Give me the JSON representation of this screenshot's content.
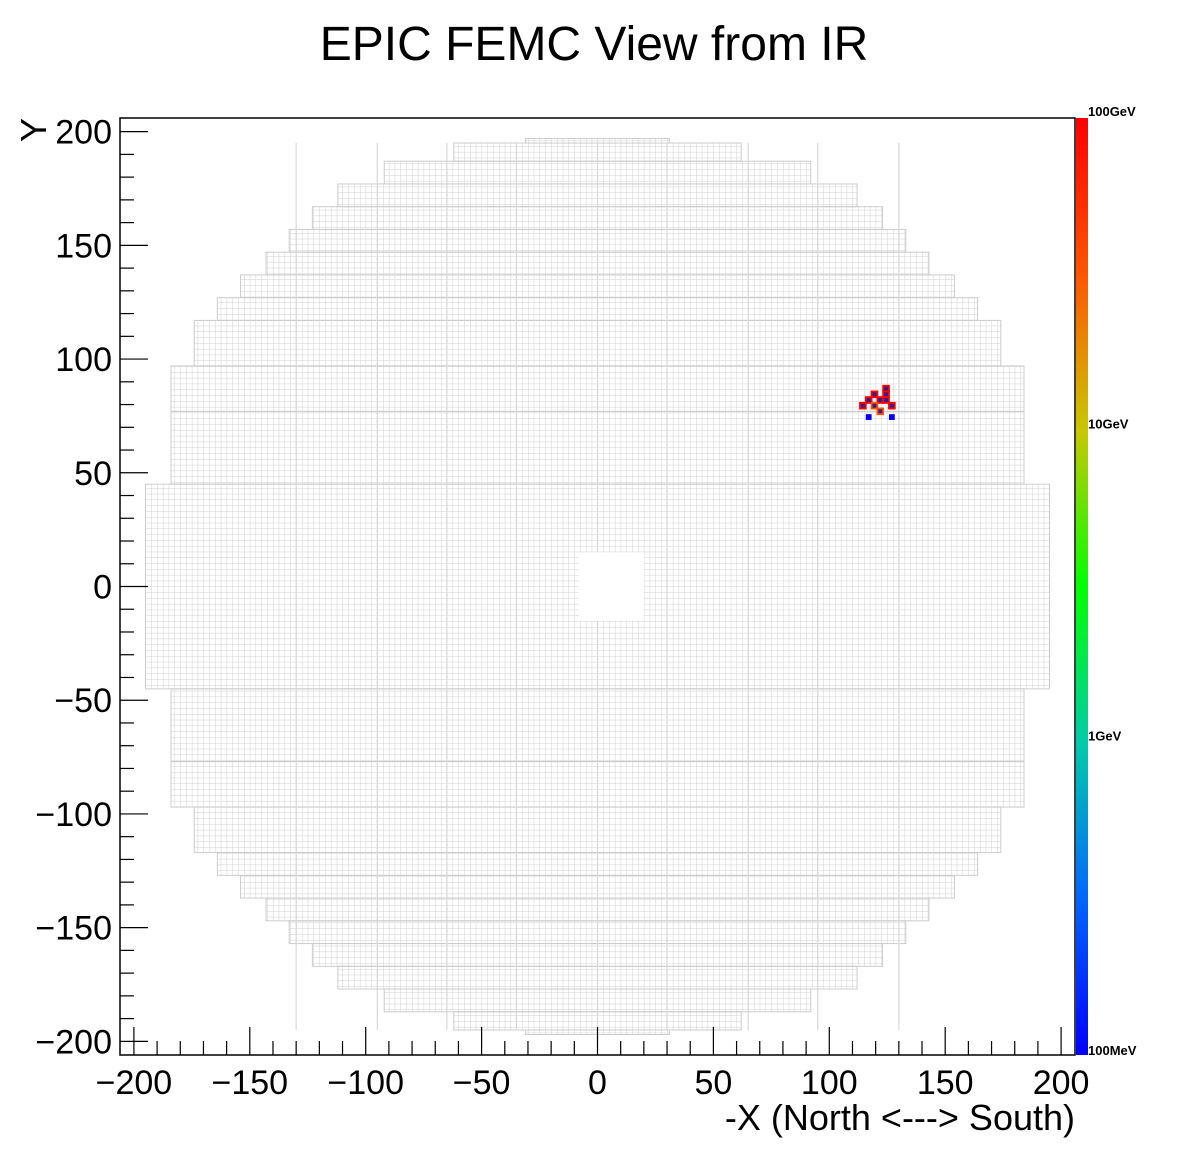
{
  "chart_data": {
    "type": "heatmap",
    "title": "EPIC FEMC View from IR",
    "xlabel": "-X (North <---> South)",
    "ylabel": "Y",
    "xlim": [
      -206,
      206
    ],
    "ylim": [
      -206,
      206
    ],
    "x_ticks": [
      -200,
      -150,
      -100,
      -50,
      0,
      50,
      100,
      150,
      200
    ],
    "y_ticks": [
      -200,
      -150,
      -100,
      -50,
      0,
      50,
      100,
      150,
      200
    ],
    "x_tick_labels": [
      "−200",
      "−150",
      "−100",
      "−50",
      "0",
      "50",
      "100",
      "150",
      "200"
    ],
    "y_tick_labels": [
      "−200",
      "−150",
      "−100",
      "−50",
      "0",
      "50",
      "100",
      "150",
      "200"
    ],
    "colorbar": {
      "scale": "log",
      "labels": [
        "100MeV",
        "1GeV",
        "10GeV",
        "100GeV"
      ],
      "colors": [
        "#0000ff",
        "#0066ff",
        "#00ccaa",
        "#00ff00",
        "#c8c800",
        "#ff5500",
        "#ff0000"
      ]
    },
    "detector_outline": {
      "cell_size": 2.5,
      "grid_color": "#cccccc",
      "beam_hole": {
        "x": [
          -8,
          20
        ],
        "y": [
          -15,
          15
        ]
      },
      "row_extents": [
        {
          "y": [
            195,
            197
          ],
          "x": [
            -31,
            31
          ]
        },
        {
          "y": [
            187,
            195
          ],
          "x": [
            -62,
            62
          ]
        },
        {
          "y": [
            177,
            187
          ],
          "x": [
            -92,
            92
          ]
        },
        {
          "y": [
            167,
            177
          ],
          "x": [
            -112,
            112
          ]
        },
        {
          "y": [
            157,
            167
          ],
          "x": [
            -123,
            123
          ]
        },
        {
          "y": [
            147,
            157
          ],
          "x": [
            -133,
            133
          ]
        },
        {
          "y": [
            137,
            147
          ],
          "x": [
            -143,
            143
          ]
        },
        {
          "y": [
            127,
            137
          ],
          "x": [
            -154,
            154
          ]
        },
        {
          "y": [
            117,
            127
          ],
          "x": [
            -164,
            164
          ]
        },
        {
          "y": [
            97,
            117
          ],
          "x": [
            -174,
            174
          ]
        },
        {
          "y": [
            77,
            97
          ],
          "x": [
            -184,
            184
          ]
        },
        {
          "y": [
            45,
            77
          ],
          "x": [
            -184,
            184
          ]
        },
        {
          "y": [
            -45,
            45
          ],
          "x": [
            -195,
            195
          ]
        },
        {
          "y": [
            -77,
            -45
          ],
          "x": [
            -184,
            184
          ]
        },
        {
          "y": [
            -97,
            -77
          ],
          "x": [
            -184,
            184
          ]
        },
        {
          "y": [
            -117,
            -97
          ],
          "x": [
            -174,
            174
          ]
        },
        {
          "y": [
            -127,
            -117
          ],
          "x": [
            -164,
            164
          ]
        },
        {
          "y": [
            -137,
            -127
          ],
          "x": [
            -154,
            154
          ]
        },
        {
          "y": [
            -147,
            -137
          ],
          "x": [
            -143,
            143
          ]
        },
        {
          "y": [
            -157,
            -147
          ],
          "x": [
            -133,
            133
          ]
        },
        {
          "y": [
            -167,
            -157
          ],
          "x": [
            -123,
            123
          ]
        },
        {
          "y": [
            -177,
            -167
          ],
          "x": [
            -112,
            112
          ]
        },
        {
          "y": [
            -187,
            -177
          ],
          "x": [
            -92,
            92
          ]
        },
        {
          "y": [
            -195,
            -187
          ],
          "x": [
            -62,
            62
          ]
        },
        {
          "y": [
            -197,
            -195
          ],
          "x": [
            -31,
            31
          ]
        }
      ]
    },
    "hits": [
      {
        "x": 114.5,
        "y": 79.5,
        "energy": 60
      },
      {
        "x": 117,
        "y": 82,
        "energy": 60
      },
      {
        "x": 119.5,
        "y": 84.5,
        "energy": 60
      },
      {
        "x": 122,
        "y": 82,
        "energy": 60
      },
      {
        "x": 124.5,
        "y": 87,
        "energy": 60
      },
      {
        "x": 124.5,
        "y": 84.5,
        "energy": 60
      },
      {
        "x": 124.5,
        "y": 82,
        "energy": 60
      },
      {
        "x": 127,
        "y": 79.5,
        "energy": 60
      },
      {
        "x": 119.5,
        "y": 79.5,
        "energy": 40
      },
      {
        "x": 122,
        "y": 77,
        "energy": 50
      },
      {
        "x": 117,
        "y": 74.5,
        "energy": 0.1
      },
      {
        "x": 127,
        "y": 74.5,
        "energy": 0.1
      }
    ]
  }
}
